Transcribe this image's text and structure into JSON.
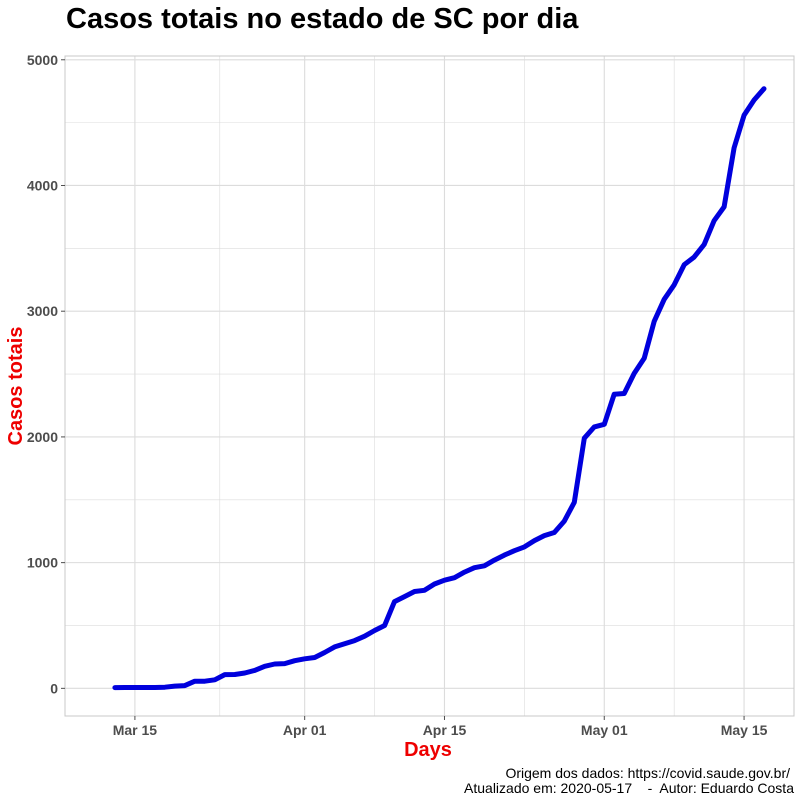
{
  "chart_data": {
    "type": "line",
    "title": "Casos totais no estado de SC por dia",
    "xlabel": "Days",
    "ylabel": "Casos totais",
    "x_tick_labels": [
      "Mar 15",
      "Apr 01",
      "Apr 15",
      "May 01",
      "May 15"
    ],
    "x_tick_dates": [
      "2020-03-15",
      "2020-04-01",
      "2020-04-15",
      "2020-05-01",
      "2020-05-15"
    ],
    "y_ticks": [
      0,
      1000,
      2000,
      3000,
      4000,
      5000
    ],
    "ylim": [
      -220,
      5030
    ],
    "xlim": [
      "2020-03-08",
      "2020-05-20"
    ],
    "grid": true,
    "series": [
      {
        "color": "#0000dd",
        "points": [
          [
            "2020-03-13",
            6
          ],
          [
            "2020-03-14",
            7
          ],
          [
            "2020-03-15",
            7
          ],
          [
            "2020-03-16",
            7
          ],
          [
            "2020-03-17",
            7
          ],
          [
            "2020-03-18",
            9
          ],
          [
            "2020-03-19",
            18
          ],
          [
            "2020-03-20",
            22
          ],
          [
            "2020-03-21",
            57
          ],
          [
            "2020-03-22",
            57
          ],
          [
            "2020-03-23",
            68
          ],
          [
            "2020-03-24",
            109
          ],
          [
            "2020-03-25",
            110
          ],
          [
            "2020-03-26",
            122
          ],
          [
            "2020-03-27",
            143
          ],
          [
            "2020-03-28",
            175
          ],
          [
            "2020-03-29",
            194
          ],
          [
            "2020-03-30",
            197
          ],
          [
            "2020-03-31",
            220
          ],
          [
            "2020-04-01",
            235
          ],
          [
            "2020-04-02",
            245
          ],
          [
            "2020-04-03",
            285
          ],
          [
            "2020-04-04",
            330
          ],
          [
            "2020-04-05",
            355
          ],
          [
            "2020-04-06",
            380
          ],
          [
            "2020-04-07",
            415
          ],
          [
            "2020-04-08",
            460
          ],
          [
            "2020-04-09",
            500
          ],
          [
            "2020-04-10",
            690
          ],
          [
            "2020-04-11",
            730
          ],
          [
            "2020-04-12",
            770
          ],
          [
            "2020-04-13",
            780
          ],
          [
            "2020-04-14",
            830
          ],
          [
            "2020-04-15",
            860
          ],
          [
            "2020-04-16",
            880
          ],
          [
            "2020-04-17",
            925
          ],
          [
            "2020-04-18",
            960
          ],
          [
            "2020-04-19",
            975
          ],
          [
            "2020-04-20",
            1020
          ],
          [
            "2020-04-21",
            1060
          ],
          [
            "2020-04-22",
            1095
          ],
          [
            "2020-04-23",
            1125
          ],
          [
            "2020-04-24",
            1175
          ],
          [
            "2020-04-25",
            1215
          ],
          [
            "2020-04-26",
            1240
          ],
          [
            "2020-04-27",
            1330
          ],
          [
            "2020-04-28",
            1480
          ],
          [
            "2020-04-29",
            1990
          ],
          [
            "2020-04-30",
            2080
          ],
          [
            "2020-05-01",
            2100
          ],
          [
            "2020-05-02",
            2340
          ],
          [
            "2020-05-03",
            2345
          ],
          [
            "2020-05-04",
            2505
          ],
          [
            "2020-05-05",
            2625
          ],
          [
            "2020-05-06",
            2920
          ],
          [
            "2020-05-07",
            3095
          ],
          [
            "2020-05-08",
            3210
          ],
          [
            "2020-05-09",
            3370
          ],
          [
            "2020-05-10",
            3430
          ],
          [
            "2020-05-11",
            3530
          ],
          [
            "2020-05-12",
            3720
          ],
          [
            "2020-05-13",
            3830
          ],
          [
            "2020-05-14",
            4300
          ],
          [
            "2020-05-15",
            4560
          ],
          [
            "2020-05-16",
            4680
          ],
          [
            "2020-05-17",
            4770
          ]
        ]
      }
    ]
  },
  "caption": {
    "source": "Origem dos dados: https://covid.saude.gov.br/",
    "updated": "Atualizado em: 2020-05-17    -  Autor: Eduardo Costa"
  },
  "colors": {
    "line": "#0000dd",
    "axis_title": "#ee0000",
    "grid": "#dcdcdc",
    "panel_border": "#c8c8c8"
  }
}
